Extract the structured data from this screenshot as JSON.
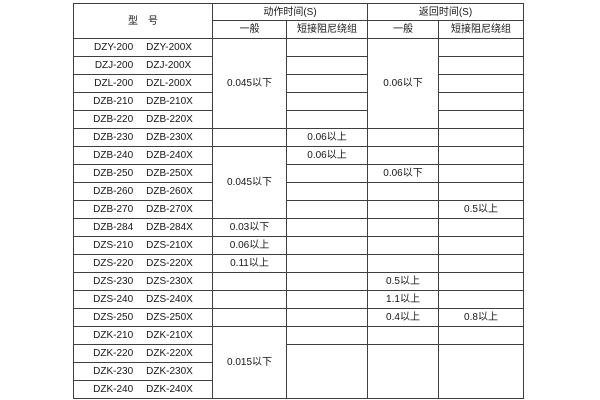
{
  "page": {
    "background": "#ffffff",
    "border_color": "#3f3f3f",
    "text_color": "#161616"
  },
  "table": {
    "header": {
      "model": "型　号",
      "action_time": "动作时间(S)",
      "return_time": "返回时间(S)",
      "general": "一般",
      "damping": "短接阻尼绕组"
    },
    "rows": [
      {
        "model": [
          "DZY-200",
          "DZY-200X"
        ],
        "cells": [
          {
            "n": "action-general",
            "rs": 5,
            "t": "0.045以下"
          },
          {
            "n": "action-damping",
            "rs": 1,
            "t": ""
          },
          {
            "n": "return-general",
            "rs": 5,
            "t": "0.06以下"
          },
          {
            "n": "return-damping",
            "rs": 1,
            "t": ""
          }
        ]
      },
      {
        "model": [
          "DZJ-200",
          "DZJ-200X"
        ],
        "cells": [
          {
            "n": "action-damping",
            "rs": 1,
            "t": ""
          },
          {
            "n": "return-damping",
            "rs": 1,
            "t": ""
          }
        ]
      },
      {
        "model": [
          "DZL-200",
          "DZL-200X"
        ],
        "cells": [
          {
            "n": "action-damping",
            "rs": 1,
            "t": ""
          },
          {
            "n": "return-damping",
            "rs": 1,
            "t": ""
          }
        ]
      },
      {
        "model": [
          "DZB-210",
          "DZB-210X"
        ],
        "cells": [
          {
            "n": "action-damping",
            "rs": 1,
            "t": ""
          },
          {
            "n": "return-damping",
            "rs": 1,
            "t": ""
          }
        ]
      },
      {
        "model": [
          "DZB-220",
          "DZB-220X"
        ],
        "cells": [
          {
            "n": "action-damping",
            "rs": 1,
            "t": ""
          },
          {
            "n": "return-damping",
            "rs": 1,
            "t": ""
          }
        ]
      },
      {
        "model": [
          "DZB-230",
          "DZB-230X"
        ],
        "cells": [
          {
            "n": "action-general",
            "rs": 1,
            "t": ""
          },
          {
            "n": "action-damping",
            "rs": 1,
            "t": "0.06以上"
          },
          {
            "n": "return-general",
            "rs": 1,
            "t": ""
          },
          {
            "n": "return-damping",
            "rs": 1,
            "t": ""
          }
        ]
      },
      {
        "model": [
          "DZB-240",
          "DZB-240X"
        ],
        "cells": [
          {
            "n": "action-general",
            "rs": 4,
            "t": "0.045以下"
          },
          {
            "n": "action-damping",
            "rs": 1,
            "t": "0.06以上"
          },
          {
            "n": "return-general",
            "rs": 1,
            "t": ""
          },
          {
            "n": "return-damping",
            "rs": 1,
            "t": ""
          }
        ]
      },
      {
        "model": [
          "DZB-250",
          "DZB-250X"
        ],
        "cells": [
          {
            "n": "action-damping",
            "rs": 1,
            "t": ""
          },
          {
            "n": "return-general",
            "rs": 1,
            "t": "0.06以下"
          },
          {
            "n": "return-damping",
            "rs": 1,
            "t": ""
          }
        ]
      },
      {
        "model": [
          "DZB-260",
          "DZB-260X"
        ],
        "cells": [
          {
            "n": "action-damping",
            "rs": 1,
            "t": ""
          },
          {
            "n": "return-general",
            "rs": 1,
            "t": ""
          },
          {
            "n": "return-damping",
            "rs": 1,
            "t": ""
          }
        ]
      },
      {
        "model": [
          "DZB-270",
          "DZB-270X"
        ],
        "cells": [
          {
            "n": "action-damping",
            "rs": 1,
            "t": ""
          },
          {
            "n": "return-general",
            "rs": 1,
            "t": ""
          },
          {
            "n": "return-damping",
            "rs": 1,
            "t": "0.5以上"
          }
        ]
      },
      {
        "model": [
          "DZB-284",
          "DZB-284X"
        ],
        "cells": [
          {
            "n": "action-general",
            "rs": 1,
            "t": "0.03以下"
          },
          {
            "n": "action-damping",
            "rs": 1,
            "t": ""
          },
          {
            "n": "return-general",
            "rs": 1,
            "t": ""
          },
          {
            "n": "return-damping",
            "rs": 1,
            "t": ""
          }
        ]
      },
      {
        "model": [
          "DZS-210",
          "DZS-210X"
        ],
        "cells": [
          {
            "n": "action-general",
            "rs": 1,
            "t": "0.06以上"
          },
          {
            "n": "action-damping",
            "rs": 1,
            "t": ""
          },
          {
            "n": "return-general",
            "rs": 1,
            "t": ""
          },
          {
            "n": "return-damping",
            "rs": 1,
            "t": ""
          }
        ]
      },
      {
        "model": [
          "DZS-220",
          "DZS-220X"
        ],
        "cells": [
          {
            "n": "action-general",
            "rs": 1,
            "t": "0.11以上"
          },
          {
            "n": "action-damping",
            "rs": 1,
            "t": ""
          },
          {
            "n": "return-general",
            "rs": 1,
            "t": ""
          },
          {
            "n": "return-damping",
            "rs": 1,
            "t": ""
          }
        ]
      },
      {
        "model": [
          "DZS-230",
          "DZS-230X"
        ],
        "cells": [
          {
            "n": "action-general",
            "rs": 1,
            "t": ""
          },
          {
            "n": "action-damping",
            "rs": 1,
            "t": ""
          },
          {
            "n": "return-general",
            "rs": 1,
            "t": "0.5以上"
          },
          {
            "n": "return-damping",
            "rs": 1,
            "t": ""
          }
        ]
      },
      {
        "model": [
          "DZS-240",
          "DZS-240X"
        ],
        "cells": [
          {
            "n": "action-general",
            "rs": 1,
            "t": ""
          },
          {
            "n": "action-damping",
            "rs": 1,
            "t": ""
          },
          {
            "n": "return-general",
            "rs": 1,
            "t": "1.1以上"
          },
          {
            "n": "return-damping",
            "rs": 1,
            "t": ""
          }
        ]
      },
      {
        "model": [
          "DZS-250",
          "DZS-250X"
        ],
        "cells": [
          {
            "n": "action-general",
            "rs": 1,
            "t": ""
          },
          {
            "n": "action-damping",
            "rs": 1,
            "t": ""
          },
          {
            "n": "return-general",
            "rs": 1,
            "t": "0.4以上"
          },
          {
            "n": "return-damping",
            "rs": 1,
            "t": "0.8以上"
          }
        ]
      },
      {
        "model": [
          "DZK-210",
          "DZK-210X"
        ],
        "cells": [
          {
            "n": "action-general",
            "rs": 4,
            "t": "0.015以下"
          },
          {
            "n": "action-damping",
            "rs": 1,
            "t": ""
          },
          {
            "n": "return-general",
            "rs": 1,
            "t": ""
          },
          {
            "n": "return-damping",
            "rs": 1,
            "t": ""
          }
        ]
      },
      {
        "model": [
          "DZK-220",
          "DZK-220X"
        ],
        "cells": [
          {
            "n": "action-damping",
            "rs": 3,
            "t": ""
          },
          {
            "n": "return-general",
            "rs": 3,
            "t": ""
          },
          {
            "n": "return-damping",
            "rs": 3,
            "t": ""
          }
        ]
      },
      {
        "model": [
          "DZK-230",
          "DZK-230X"
        ],
        "cells": []
      },
      {
        "model": [
          "DZK-240",
          "DZK-240X"
        ],
        "cells": []
      }
    ]
  }
}
